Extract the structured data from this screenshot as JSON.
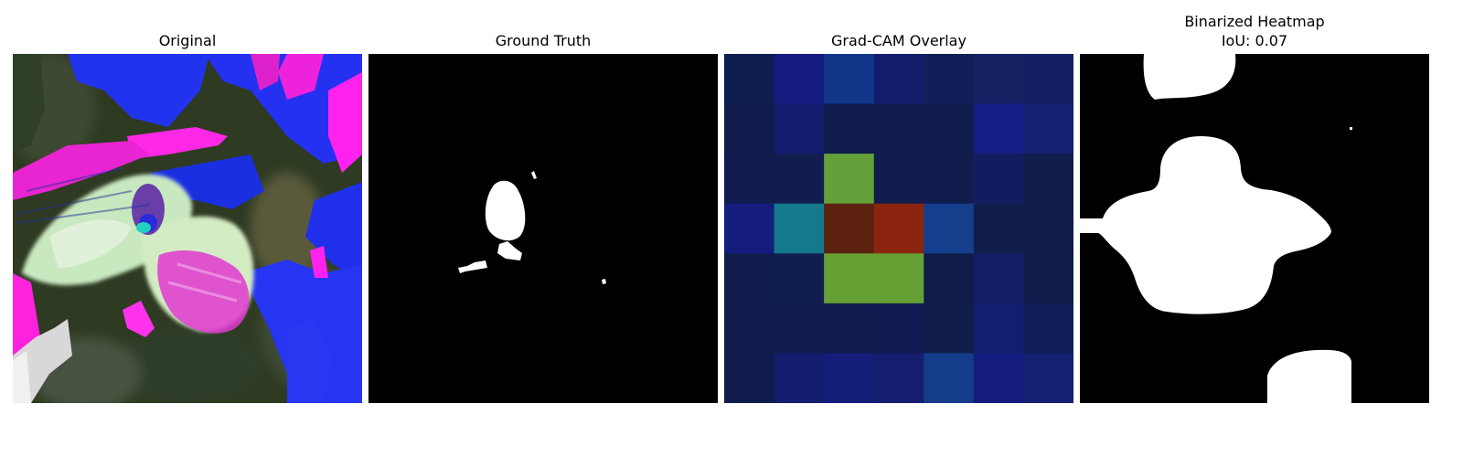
{
  "figure": {
    "panels": [
      {
        "title": "Original"
      },
      {
        "title": "Ground Truth"
      },
      {
        "title": "Grad-CAM Overlay"
      },
      {
        "title": "Binarized Heatmap",
        "subtitle": "IoU: 0.07"
      }
    ]
  },
  "heatmap": {
    "rows": 7,
    "cols": 7,
    "colors": [
      [
        "#101d50",
        "#141c80",
        "#12358a",
        "#131c6a",
        "#121e57",
        "#142060",
        "#141e63"
      ],
      [
        "#101d4c",
        "#121c6c",
        "#111d4d",
        "#111d4d",
        "#111d4c",
        "#141e86",
        "#142070"
      ],
      [
        "#111d4e",
        "#111d4e",
        "#64a13b",
        "#111d4c",
        "#111d4d",
        "#121d60",
        "#111d4a"
      ],
      [
        "#141c7e",
        "#14798a",
        "#5c210f",
        "#8b2510",
        "#153e8d",
        "#111d4b",
        "#111d4b"
      ],
      [
        "#101d4c",
        "#101d50",
        "#66a035",
        "#66a035",
        "#101d4a",
        "#111e66",
        "#101d4a"
      ],
      [
        "#101d4c",
        "#101d4c",
        "#111d4e",
        "#111d52",
        "#101d4b",
        "#121f6e",
        "#111d58"
      ],
      [
        "#101d4c",
        "#121c6c",
        "#131d7a",
        "#141d6e",
        "#153b8b",
        "#141d7e",
        "#132170"
      ]
    ]
  }
}
